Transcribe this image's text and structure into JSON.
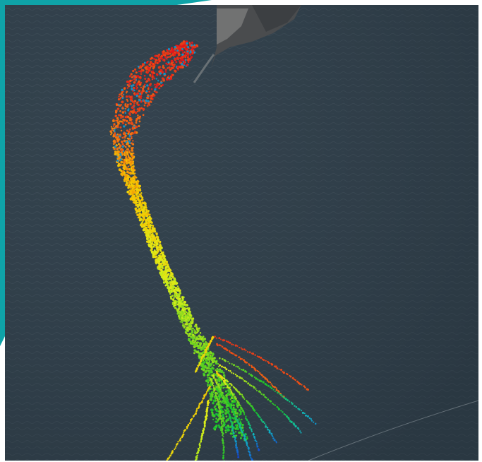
{
  "map": {
    "background": "satellite-water",
    "water_color": "#2f3d47",
    "land_color": "#4a4c4e",
    "accent_color": "#0fa3a8",
    "colormap": [
      "#e0161b",
      "#f26a12",
      "#f5c400",
      "#dcef1a",
      "#7fd61f",
      "#18c22a",
      "#10b7c2",
      "#1435d6"
    ]
  }
}
